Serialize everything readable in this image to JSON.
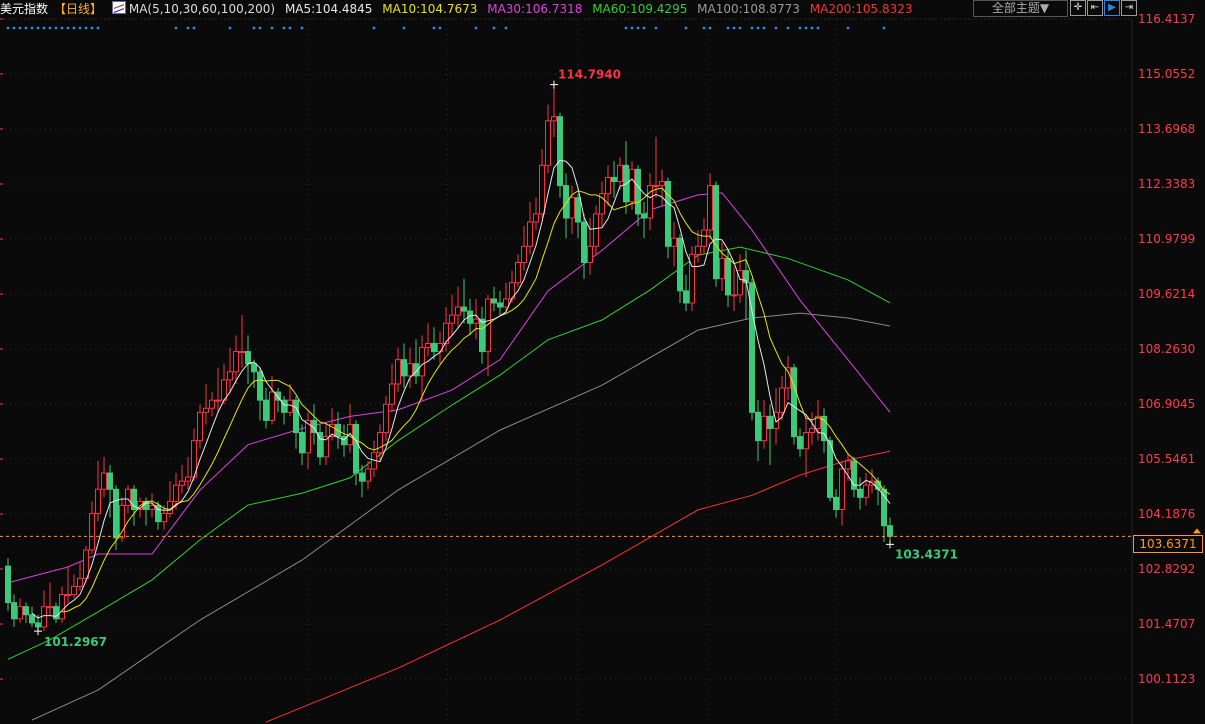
{
  "header": {
    "title": "美元指数",
    "period": "【日线】",
    "ma_params": "MA(5,10,30,60,100,200)",
    "ma5": "MA5:104.4845",
    "ma10": "MA10:104.7673",
    "ma30": "MA30:106.7318",
    "ma60": "MA60:109.4295",
    "ma100": "MA100:108.8773",
    "ma200": "MA200:105.8323"
  },
  "toolbar": {
    "theme_label": "全部主题▼",
    "tools": [
      {
        "icon": "crosshair-icon",
        "glyph": "✛"
      },
      {
        "icon": "range-icon",
        "glyph": "⇤"
      },
      {
        "icon": "play-icon",
        "glyph": "▶"
      },
      {
        "icon": "expand-icon",
        "glyph": "⇥"
      }
    ]
  },
  "colors": {
    "up": "#ff3040",
    "down": "#3cc97a",
    "ma5": "#e8e8e8",
    "ma10": "#e6e600",
    "ma30": "#e040e0",
    "ma60": "#30d030",
    "ma100": "#8a8a8a",
    "ma200": "#ff3030",
    "axis": "#ff3a48",
    "current": "#ff9a20",
    "marker": "#2a8ae0"
  },
  "chart_data": {
    "type": "candlestick",
    "ylim": [
      100.1123,
      116.4137
    ],
    "y_ticks": [
      "116.4137",
      "115.0552",
      "113.6968",
      "112.3383",
      "110.9799",
      "109.6214",
      "108.2630",
      "106.9045",
      "105.5461",
      "104.1876",
      "102.8292",
      "101.4707",
      "100.1123"
    ],
    "grid": true,
    "current_price": "103.6371",
    "annotations": {
      "high": "114.7940",
      "low": "101.2967",
      "last_low": "103.4371"
    },
    "open": [
      102.9,
      102.0,
      101.6,
      101.9,
      101.7,
      101.5,
      101.4,
      101.9,
      101.9,
      101.6,
      102.2,
      102.2,
      102.4,
      102.6,
      103.3,
      104.2,
      104.8,
      105.2,
      104.8,
      103.6,
      104.4,
      104.8,
      104.3,
      104.5,
      104.3,
      104.4,
      104.0,
      104.2,
      104.5,
      104.9,
      105.0,
      105.1,
      106.0,
      106.7,
      106.8,
      107.0,
      107.0,
      107.5,
      107.7,
      108.2,
      108.2,
      107.9,
      107.7,
      107.0,
      106.5,
      107.2,
      107.0,
      106.7,
      107.0,
      106.2,
      105.7,
      106.5,
      106.2,
      105.6,
      106.1,
      106.4,
      106.1,
      105.9,
      106.4,
      105.2,
      105.0,
      105.3,
      105.7,
      106.2,
      106.9,
      107.4,
      108.0,
      107.6,
      107.9,
      107.6,
      108.3,
      108.4,
      108.2,
      108.4,
      108.9,
      109.1,
      109.3,
      109.2,
      108.9,
      109.0,
      108.2,
      109.5,
      109.4,
      109.3,
      109.5,
      109.9,
      110.4,
      110.8,
      111.4,
      111.6,
      112.8,
      113.9,
      114.0,
      112.3,
      111.5,
      112.0,
      111.4,
      110.4,
      110.8,
      111.6,
      112.1,
      112.5,
      112.4,
      112.8,
      111.9,
      112.7,
      111.6,
      111.5,
      112.3,
      112.3,
      112.4,
      110.8,
      111.0,
      109.7,
      109.4,
      110.6,
      110.8,
      111.2,
      112.3,
      110.0,
      110.5,
      109.6,
      109.6,
      110.2,
      109.9,
      106.7,
      106.0,
      106.6,
      106.3,
      106.7,
      107.3,
      107.8,
      106.1,
      105.8,
      106.2,
      106.3,
      106.6,
      106.0,
      104.6,
      104.3,
      105.3,
      105.5,
      104.8,
      104.6,
      104.9,
      105.0,
      104.8,
      103.9
    ],
    "high": [
      103.1,
      102.2,
      102.1,
      102.0,
      101.9,
      101.7,
      102.3,
      102.5,
      102.0,
      102.4,
      102.9,
      102.7,
      103.0,
      103.4,
      104.5,
      105.5,
      105.6,
      105.4,
      104.9,
      104.6,
      104.9,
      104.9,
      104.6,
      104.6,
      104.7,
      104.5,
      104.4,
      105.0,
      105.2,
      105.4,
      105.6,
      106.3,
      106.9,
      107.4,
      107.2,
      107.8,
      107.9,
      108.3,
      108.6,
      109.1,
      108.6,
      108.0,
      107.8,
      107.3,
      107.6,
      107.3,
      107.1,
      107.4,
      107.1,
      106.4,
      106.7,
      106.9,
      106.4,
      106.4,
      106.8,
      106.7,
      106.4,
      106.9,
      106.5,
      105.4,
      105.5,
      106.0,
      106.4,
      107.1,
      107.9,
      108.3,
      108.4,
      108.3,
      108.5,
      108.6,
      108.9,
      108.8,
      108.7,
      109.3,
      109.6,
      109.8,
      110.0,
      109.5,
      109.5,
      109.3,
      109.6,
      109.8,
      109.7,
      109.9,
      110.2,
      110.6,
      111.3,
      111.9,
      112.0,
      113.2,
      114.3,
      114.794,
      114.1,
      112.6,
      112.3,
      112.1,
      111.6,
      111.5,
      111.8,
      112.4,
      112.8,
      112.9,
      113.0,
      113.4,
      112.9,
      112.8,
      111.9,
      112.6,
      113.5,
      112.7,
      112.5,
      111.4,
      111.1,
      110.1,
      110.8,
      111.2,
      111.5,
      112.6,
      112.4,
      110.9,
      110.7,
      110.3,
      110.6,
      110.7,
      110.0,
      107.0,
      107.0,
      106.9,
      107.3,
      107.6,
      108.1,
      107.9,
      106.3,
      106.6,
      106.7,
      107.0,
      106.8,
      106.1,
      104.8,
      105.5,
      105.7,
      105.6,
      105.1,
      105.2,
      105.3,
      105.1,
      104.9,
      104.1
    ],
    "low": [
      101.8,
      101.4,
      101.5,
      101.5,
      101.4,
      101.2967,
      101.3,
      101.7,
      101.5,
      101.5,
      102.0,
      102.1,
      102.3,
      102.5,
      103.2,
      104.0,
      104.6,
      104.1,
      103.3,
      103.5,
      104.2,
      103.9,
      104.1,
      103.9,
      104.1,
      103.8,
      103.8,
      104.1,
      104.3,
      104.7,
      104.8,
      105.0,
      105.8,
      106.4,
      106.6,
      106.7,
      106.9,
      107.2,
      107.4,
      107.8,
      107.4,
      107.3,
      106.5,
      106.3,
      106.4,
      106.7,
      106.4,
      106.6,
      105.8,
      105.4,
      105.3,
      105.9,
      105.4,
      105.4,
      106.0,
      105.8,
      105.6,
      105.7,
      104.9,
      104.6,
      104.8,
      105.1,
      105.5,
      106.0,
      106.7,
      107.2,
      107.3,
      107.3,
      107.4,
      107.0,
      108.1,
      108.0,
      107.9,
      108.2,
      108.6,
      108.8,
      108.9,
      108.6,
      108.5,
      107.9,
      107.6,
      109.2,
      109.1,
      109.2,
      109.4,
      109.8,
      110.2,
      110.6,
      111.2,
      111.5,
      112.6,
      113.5,
      112.0,
      111.0,
      111.1,
      111.0,
      110.0,
      110.1,
      110.6,
      111.3,
      111.8,
      112.0,
      112.2,
      111.6,
      111.7,
      111.3,
      111.0,
      111.2,
      112.0,
      111.8,
      110.5,
      110.3,
      109.4,
      109.2,
      109.2,
      110.4,
      110.6,
      111.0,
      109.8,
      109.7,
      109.3,
      109.2,
      109.4,
      109.0,
      106.5,
      105.5,
      105.8,
      105.4,
      105.9,
      106.5,
      107.0,
      105.9,
      105.6,
      105.1,
      105.9,
      106.0,
      105.7,
      104.5,
      104.1,
      103.9,
      105.0,
      104.6,
      104.3,
      104.4,
      104.7,
      104.4,
      103.5,
      103.4371
    ],
    "close": [
      102.0,
      101.6,
      101.9,
      101.7,
      101.5,
      101.4,
      101.9,
      101.9,
      101.6,
      102.2,
      102.2,
      102.4,
      102.6,
      103.3,
      104.2,
      104.8,
      105.2,
      104.8,
      103.6,
      104.4,
      104.8,
      104.3,
      104.5,
      104.3,
      104.4,
      104.0,
      104.2,
      104.5,
      104.9,
      105.0,
      105.1,
      106.0,
      106.7,
      106.8,
      107.0,
      107.0,
      107.5,
      107.7,
      108.2,
      108.2,
      107.9,
      107.7,
      107.0,
      106.5,
      107.2,
      107.0,
      106.7,
      107.0,
      106.2,
      105.7,
      106.5,
      106.2,
      105.6,
      106.1,
      106.4,
      106.1,
      105.9,
      106.4,
      105.2,
      105.0,
      105.3,
      105.7,
      106.2,
      106.9,
      107.4,
      108.0,
      107.6,
      107.9,
      107.6,
      108.3,
      108.4,
      108.2,
      108.4,
      108.9,
      109.1,
      109.3,
      109.2,
      108.9,
      109.0,
      108.2,
      109.5,
      109.4,
      109.3,
      109.5,
      109.9,
      110.4,
      110.8,
      111.4,
      111.6,
      112.8,
      113.9,
      114.0,
      112.3,
      111.5,
      112.0,
      111.4,
      110.4,
      110.8,
      111.6,
      112.1,
      112.5,
      112.4,
      112.8,
      111.9,
      112.7,
      111.6,
      111.5,
      112.3,
      112.3,
      112.4,
      110.8,
      111.0,
      109.7,
      109.4,
      110.6,
      110.8,
      111.2,
      112.3,
      110.0,
      110.5,
      109.6,
      109.6,
      110.2,
      109.9,
      106.7,
      106.0,
      106.6,
      106.3,
      106.7,
      107.3,
      107.8,
      106.1,
      105.8,
      106.2,
      106.3,
      106.6,
      106.0,
      104.6,
      104.3,
      105.3,
      105.5,
      104.8,
      104.6,
      104.9,
      105.0,
      104.8,
      103.9,
      103.6371
    ],
    "moving_averages": {
      "ma30": [
        [
          0,
          102.49
        ],
        [
          10,
          102.88
        ],
        [
          15,
          103.2
        ],
        [
          24,
          103.2
        ],
        [
          32,
          104.78
        ],
        [
          40,
          105.9
        ],
        [
          49,
          106.3
        ],
        [
          57,
          106.6
        ],
        [
          65,
          106.76
        ],
        [
          74,
          107.25
        ],
        [
          82,
          108.0
        ],
        [
          90,
          109.7
        ],
        [
          99,
          110.7
        ],
        [
          107,
          111.7
        ],
        [
          115,
          112.07
        ],
        [
          119,
          112.12
        ],
        [
          124,
          111.2
        ],
        [
          132,
          109.47
        ],
        [
          140,
          108.0
        ],
        [
          147,
          106.7
        ]
      ],
      "ma60": [
        [
          0,
          100.6
        ],
        [
          7,
          101.08
        ],
        [
          15,
          101.77
        ],
        [
          24,
          102.56
        ],
        [
          32,
          103.55
        ],
        [
          40,
          104.41
        ],
        [
          49,
          104.7
        ],
        [
          57,
          105.08
        ],
        [
          65,
          106.0
        ],
        [
          74,
          106.88
        ],
        [
          82,
          107.62
        ],
        [
          90,
          108.49
        ],
        [
          99,
          108.98
        ],
        [
          107,
          109.72
        ],
        [
          115,
          110.58
        ],
        [
          122,
          110.78
        ],
        [
          130,
          110.5
        ],
        [
          140,
          109.97
        ],
        [
          147,
          109.4
        ]
      ],
      "ma100": [
        [
          4,
          99.1
        ],
        [
          15,
          99.84
        ],
        [
          32,
          101.57
        ],
        [
          49,
          103.05
        ],
        [
          65,
          104.78
        ],
        [
          82,
          106.26
        ],
        [
          99,
          107.37
        ],
        [
          115,
          108.73
        ],
        [
          124,
          109.03
        ],
        [
          132,
          109.15
        ],
        [
          140,
          109.03
        ],
        [
          147,
          108.83
        ]
      ],
      "ma200": [
        [
          43,
          99.05
        ],
        [
          65,
          100.38
        ],
        [
          82,
          101.57
        ],
        [
          99,
          102.93
        ],
        [
          115,
          104.29
        ],
        [
          124,
          104.65
        ],
        [
          132,
          105.15
        ],
        [
          140,
          105.52
        ],
        [
          147,
          105.74
        ]
      ]
    },
    "event_markers": [
      0,
      1,
      2,
      3,
      4,
      5,
      6,
      7,
      8,
      9,
      10,
      11,
      12,
      13,
      14,
      15,
      28,
      30,
      31,
      37,
      41,
      42,
      44,
      46,
      47,
      49,
      61,
      66,
      71,
      72,
      78,
      81,
      83,
      103,
      104,
      105,
      106,
      108,
      113,
      116,
      117,
      120,
      121,
      122,
      124,
      125,
      126,
      128,
      130,
      132,
      133,
      134,
      135,
      140,
      146
    ]
  }
}
